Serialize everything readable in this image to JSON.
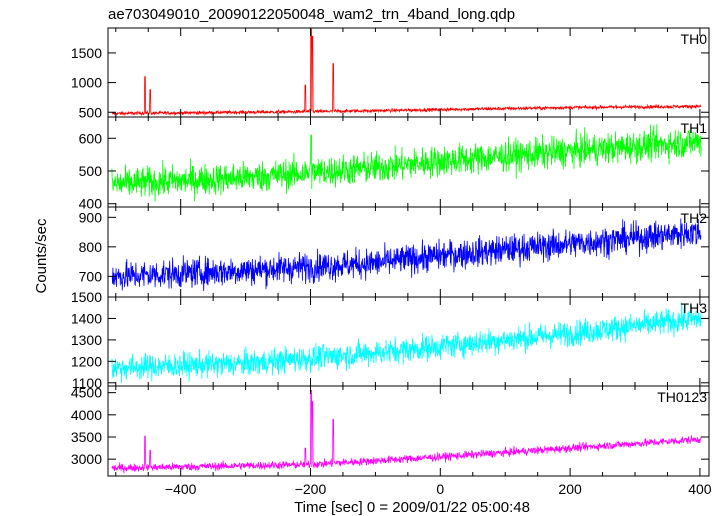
{
  "chart_data": {
    "type": "line",
    "title": "ae703049010_20090122050048_wam2_trn_4band_long.qdp",
    "xlabel": "Time [sec] 0 = 2009/01/22 05:00:48",
    "ylabel": "Counts/sec",
    "xlim": [
      -512,
      414
    ],
    "xticks": [
      -400,
      -200,
      0,
      200,
      400
    ],
    "legend": "none",
    "grid": false,
    "panels": [
      {
        "name": "TH0",
        "color": "#ff0000",
        "ylim": [
          420,
          1920
        ],
        "yticks": [
          500,
          1000,
          1500
        ],
        "trend": [
          [
            -500,
            480
          ],
          [
            -200,
            510
          ],
          [
            0,
            545
          ],
          [
            200,
            580
          ],
          [
            400,
            600
          ]
        ],
        "noise": 14,
        "spikes": [
          [
            -455,
            1100
          ],
          [
            -447,
            880
          ],
          [
            -208,
            960
          ],
          [
            -199,
            1900
          ],
          [
            -197,
            1780
          ],
          [
            -165,
            1320
          ]
        ]
      },
      {
        "name": "TH1",
        "color": "#00ff00",
        "ylim": [
          390,
          665
        ],
        "yticks": [
          400,
          500,
          600
        ],
        "trend": [
          [
            -500,
            460
          ],
          [
            -300,
            480
          ],
          [
            -100,
            510
          ],
          [
            0,
            530
          ],
          [
            200,
            560
          ],
          [
            400,
            590
          ]
        ],
        "noise": 24,
        "spikes": [
          [
            -199,
            610
          ]
        ]
      },
      {
        "name": "TH2",
        "color": "#0000ff",
        "ylim": [
          630,
          935
        ],
        "yticks": [
          700,
          800,
          900
        ],
        "trend": [
          [
            -500,
            700
          ],
          [
            -300,
            720
          ],
          [
            -100,
            745
          ],
          [
            0,
            770
          ],
          [
            200,
            810
          ],
          [
            400,
            850
          ]
        ],
        "noise": 25,
        "spikes": []
      },
      {
        "name": "TH3",
        "color": "#00ffff",
        "ylim": [
          1085,
          1500
        ],
        "yticks": [
          1100,
          1200,
          1300,
          1400,
          1500
        ],
        "trend": [
          [
            -500,
            1170
          ],
          [
            -300,
            1190
          ],
          [
            -100,
            1240
          ],
          [
            0,
            1270
          ],
          [
            200,
            1330
          ],
          [
            400,
            1400
          ]
        ],
        "noise": 30,
        "spikes": []
      },
      {
        "name": "TH0123",
        "color": "#ff00ff",
        "ylim": [
          2620,
          4650
        ],
        "yticks": [
          3000,
          3500,
          4000,
          4500
        ],
        "trend": [
          [
            -500,
            2800
          ],
          [
            -200,
            2880
          ],
          [
            0,
            3050
          ],
          [
            200,
            3250
          ],
          [
            400,
            3450
          ]
        ],
        "noise": 45,
        "spikes": [
          [
            -455,
            3520
          ],
          [
            -447,
            3200
          ],
          [
            -208,
            3250
          ],
          [
            -199,
            4550
          ],
          [
            -197,
            4300
          ],
          [
            -165,
            3900
          ]
        ]
      }
    ]
  }
}
